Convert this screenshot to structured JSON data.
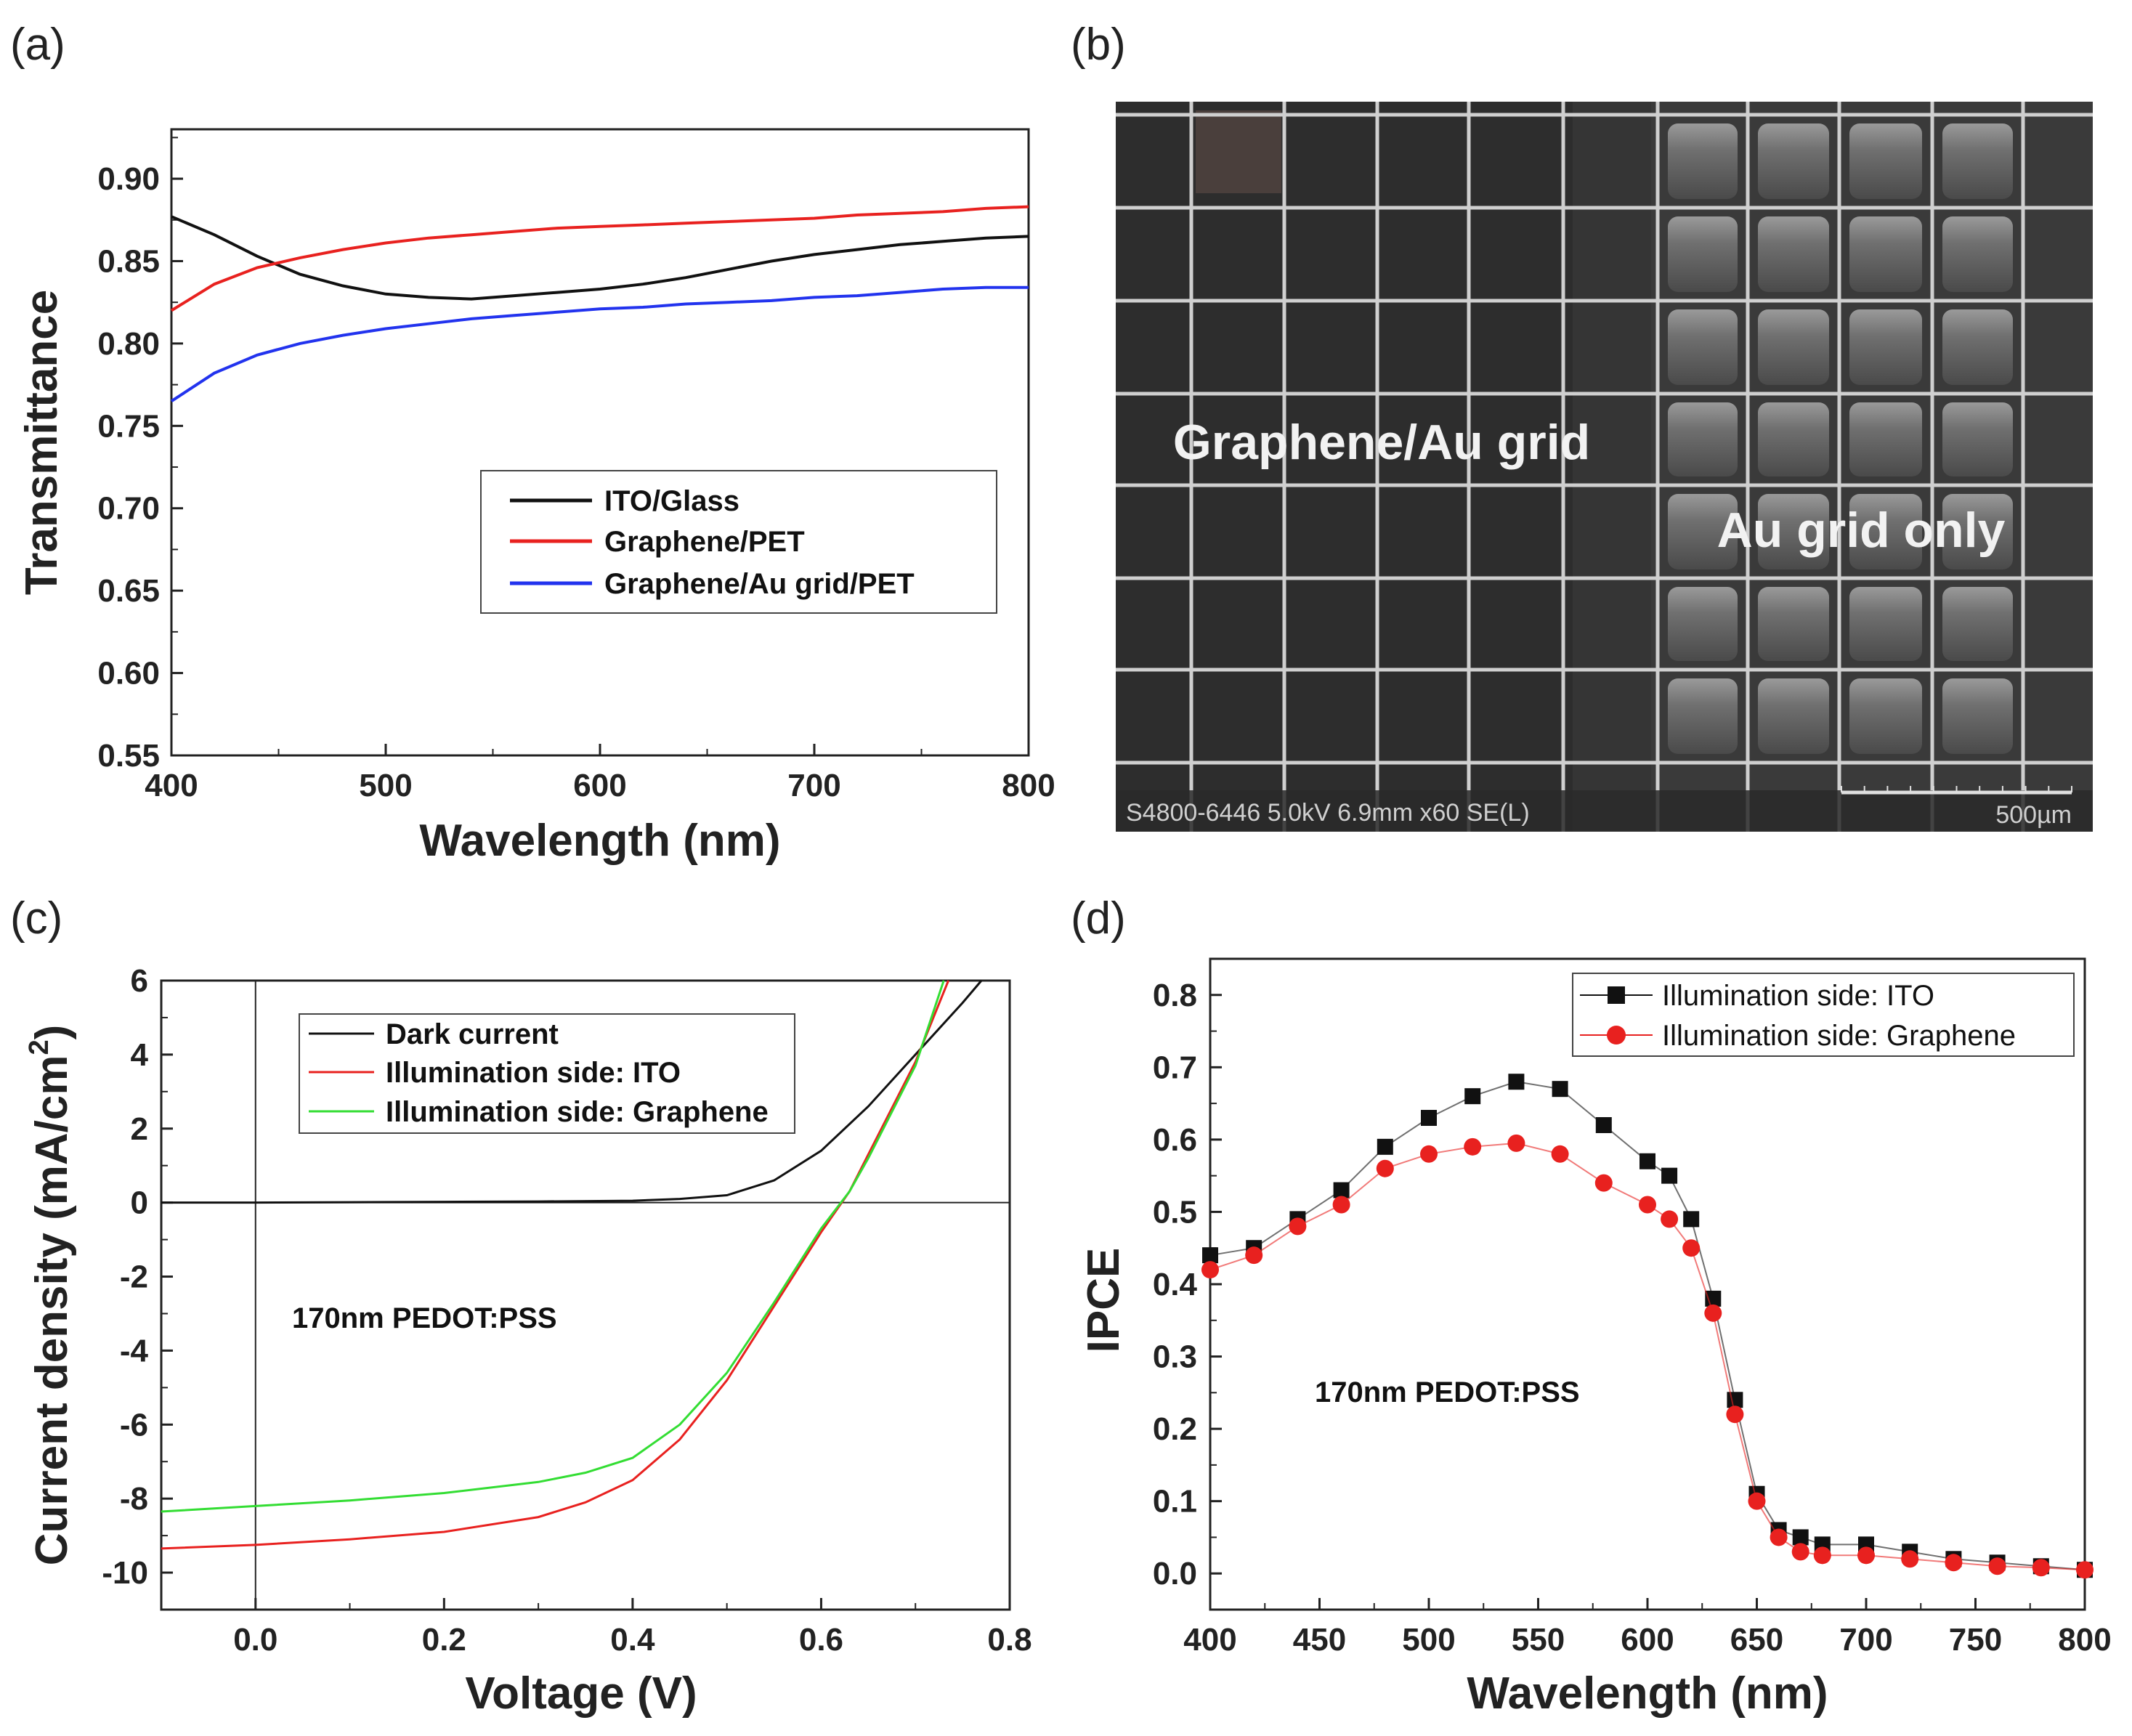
{
  "panels": {
    "a": "(a)",
    "b": "(b)",
    "c": "(c)",
    "d": "(d)"
  },
  "colors": {
    "black": "#111111",
    "red": "#e8211f",
    "blue": "#2233ee",
    "green": "#33dd33",
    "axis": "#222222"
  },
  "sem": {
    "label_left": "Graphene/Au grid",
    "label_right": "Au grid only",
    "info": "S4800-6446 5.0kV 6.9mm x60 SE(L)",
    "scale_label": "500µm"
  },
  "chart_data": [
    {
      "id": "a",
      "type": "line",
      "xlabel": "Wavelength (nm)",
      "ylabel": "Transmittance",
      "xlim": [
        400,
        800
      ],
      "ylim": [
        0.55,
        0.93
      ],
      "xticks": [
        "400",
        "500",
        "600",
        "700",
        "800"
      ],
      "yticks": [
        "0.55",
        "0.60",
        "0.65",
        "0.70",
        "0.75",
        "0.80",
        "0.85",
        "0.90"
      ],
      "legend": "center-right",
      "series": [
        {
          "name": "ITO/Glass",
          "color": "#111111",
          "x": [
            400,
            420,
            440,
            460,
            480,
            500,
            520,
            540,
            560,
            580,
            600,
            620,
            640,
            660,
            680,
            700,
            720,
            740,
            760,
            780,
            800
          ],
          "y": [
            0.877,
            0.866,
            0.853,
            0.842,
            0.835,
            0.83,
            0.828,
            0.827,
            0.829,
            0.831,
            0.833,
            0.836,
            0.84,
            0.845,
            0.85,
            0.854,
            0.857,
            0.86,
            0.862,
            0.864,
            0.865
          ]
        },
        {
          "name": "Graphene/PET",
          "color": "#e8211f",
          "x": [
            400,
            420,
            440,
            460,
            480,
            500,
            520,
            540,
            560,
            580,
            600,
            620,
            640,
            660,
            680,
            700,
            720,
            740,
            760,
            780,
            800
          ],
          "y": [
            0.82,
            0.836,
            0.846,
            0.852,
            0.857,
            0.861,
            0.864,
            0.866,
            0.868,
            0.87,
            0.871,
            0.872,
            0.873,
            0.874,
            0.875,
            0.876,
            0.878,
            0.879,
            0.88,
            0.882,
            0.883
          ]
        },
        {
          "name": "Graphene/Au grid/PET",
          "color": "#2233ee",
          "x": [
            400,
            420,
            440,
            460,
            480,
            500,
            520,
            540,
            560,
            580,
            600,
            620,
            640,
            660,
            680,
            700,
            720,
            740,
            760,
            780,
            800
          ],
          "y": [
            0.765,
            0.782,
            0.793,
            0.8,
            0.805,
            0.809,
            0.812,
            0.815,
            0.817,
            0.819,
            0.821,
            0.822,
            0.824,
            0.825,
            0.826,
            0.828,
            0.829,
            0.831,
            0.833,
            0.834,
            0.834
          ]
        }
      ]
    },
    {
      "id": "c",
      "type": "line",
      "xlabel": "Voltage (V)",
      "ylabel_main": "Current density (mA/cm",
      "ylabel_sup": "2",
      "ylabel_end": ")",
      "xlim": [
        -0.1,
        0.8
      ],
      "ylim": [
        -11,
        6
      ],
      "xticks": [
        {
          "v": 0.0,
          "t": "0.0"
        },
        {
          "v": 0.2,
          "t": "0.2"
        },
        {
          "v": 0.4,
          "t": "0.4"
        },
        {
          "v": 0.6,
          "t": "0.6"
        },
        {
          "v": 0.8,
          "t": "0.8"
        }
      ],
      "yticks": [
        {
          "v": 6,
          "t": "6"
        },
        {
          "v": 4,
          "t": "4"
        },
        {
          "v": 2,
          "t": "2"
        },
        {
          "v": 0,
          "t": "0"
        },
        {
          "v": -2,
          "t": "-2"
        },
        {
          "v": -4,
          "t": "-4"
        },
        {
          "v": -6,
          "t": "-6"
        },
        {
          "v": -8,
          "t": "-8"
        },
        {
          "v": -10,
          "t": "-10"
        }
      ],
      "annotation": "170nm PEDOT:PSS",
      "legend": "top-left",
      "series": [
        {
          "name": "Dark current",
          "color": "#111111",
          "x": [
            -0.1,
            0.0,
            0.1,
            0.2,
            0.3,
            0.4,
            0.45,
            0.5,
            0.55,
            0.6,
            0.65,
            0.7,
            0.75,
            0.77
          ],
          "y": [
            0.0,
            0.0,
            0.01,
            0.02,
            0.03,
            0.05,
            0.1,
            0.2,
            0.6,
            1.4,
            2.6,
            4.0,
            5.4,
            6.0
          ]
        },
        {
          "name": "Illumination side: ITO",
          "color": "#e8211f",
          "x": [
            -0.1,
            0.0,
            0.1,
            0.2,
            0.3,
            0.35,
            0.4,
            0.45,
            0.5,
            0.55,
            0.6,
            0.63,
            0.65,
            0.7,
            0.735
          ],
          "y": [
            -9.35,
            -9.25,
            -9.1,
            -8.9,
            -8.5,
            -8.1,
            -7.5,
            -6.4,
            -4.8,
            -2.8,
            -0.8,
            0.3,
            1.3,
            3.8,
            6.0
          ]
        },
        {
          "name": "Illumination side: Graphene",
          "color": "#33dd33",
          "x": [
            -0.1,
            0.0,
            0.1,
            0.2,
            0.3,
            0.35,
            0.4,
            0.45,
            0.5,
            0.55,
            0.6,
            0.63,
            0.65,
            0.7,
            0.73
          ],
          "y": [
            -8.35,
            -8.2,
            -8.05,
            -7.85,
            -7.55,
            -7.3,
            -6.9,
            -6.0,
            -4.6,
            -2.7,
            -0.7,
            0.3,
            1.2,
            3.7,
            6.0
          ]
        }
      ]
    },
    {
      "id": "d",
      "type": "scatter",
      "xlabel": "Wavelength (nm)",
      "ylabel": "IPCE",
      "xlim": [
        400,
        800
      ],
      "ylim": [
        -0.05,
        0.85
      ],
      "xticks": [
        "400",
        "450",
        "500",
        "550",
        "600",
        "650",
        "700",
        "750",
        "800"
      ],
      "yticks": [
        "0.0",
        "0.1",
        "0.2",
        "0.3",
        "0.4",
        "0.5",
        "0.6",
        "0.7",
        "0.8"
      ],
      "annotation": "170nm PEDOT:PSS",
      "legend": "top-right",
      "series": [
        {
          "name": "Illumination side: ITO",
          "color": "#111111",
          "marker": "square",
          "x": [
            400,
            420,
            440,
            460,
            480,
            500,
            520,
            540,
            560,
            580,
            600,
            610,
            620,
            630,
            640,
            650,
            660,
            670,
            680,
            700,
            720,
            740,
            760,
            780,
            800
          ],
          "y": [
            0.44,
            0.45,
            0.49,
            0.53,
            0.59,
            0.63,
            0.66,
            0.68,
            0.67,
            0.62,
            0.57,
            0.55,
            0.49,
            0.38,
            0.24,
            0.11,
            0.06,
            0.05,
            0.04,
            0.04,
            0.03,
            0.02,
            0.015,
            0.01,
            0.005
          ]
        },
        {
          "name": "Illumination side: Graphene",
          "color": "#e8211f",
          "marker": "circle",
          "x": [
            400,
            420,
            440,
            460,
            480,
            500,
            520,
            540,
            560,
            580,
            600,
            610,
            620,
            630,
            640,
            650,
            660,
            670,
            680,
            700,
            720,
            740,
            760,
            780,
            800
          ],
          "y": [
            0.42,
            0.44,
            0.48,
            0.51,
            0.56,
            0.58,
            0.59,
            0.595,
            0.58,
            0.54,
            0.51,
            0.49,
            0.45,
            0.36,
            0.22,
            0.1,
            0.05,
            0.03,
            0.025,
            0.025,
            0.02,
            0.015,
            0.01,
            0.008,
            0.005
          ]
        }
      ]
    }
  ]
}
